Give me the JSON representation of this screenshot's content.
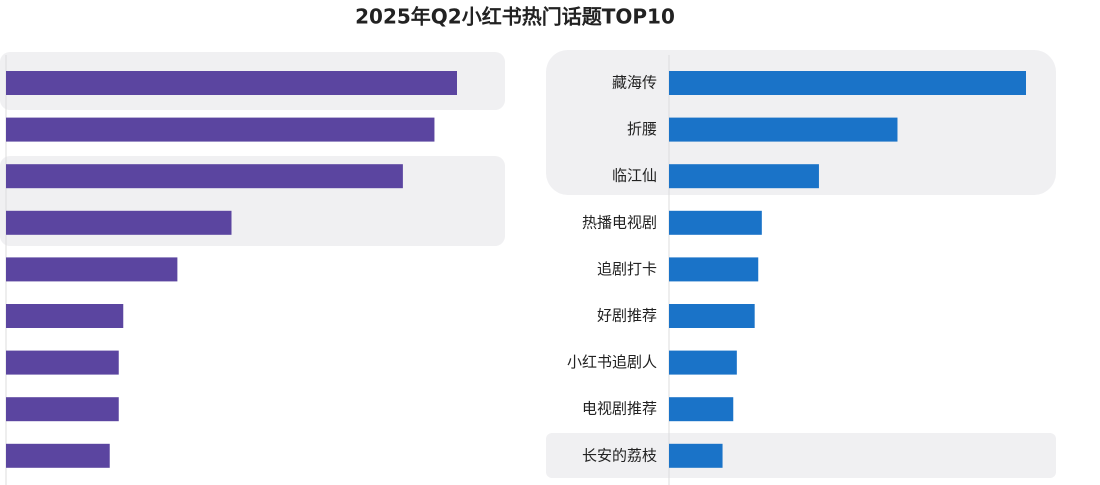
{
  "title": "2025年Q2小红书热门话题TOP10",
  "chart_data": [
    {
      "type": "hbar",
      "color": "#5b45a0",
      "categories": [
        null,
        null,
        null,
        null,
        null,
        null,
        null,
        null,
        null
      ],
      "values": [
        100,
        95,
        88,
        50,
        38,
        26,
        25,
        25,
        23
      ]
    },
    {
      "type": "hbar",
      "color": "#1a73c8",
      "categories": [
        "藏海传",
        "折腰",
        "临江仙",
        "热播电视剧",
        "追剧打卡",
        "好剧推荐",
        "小红书追剧人",
        "电视剧推荐",
        "长安的荔枝"
      ],
      "values": [
        100,
        64,
        42,
        26,
        25,
        24,
        19,
        18,
        15
      ]
    }
  ]
}
